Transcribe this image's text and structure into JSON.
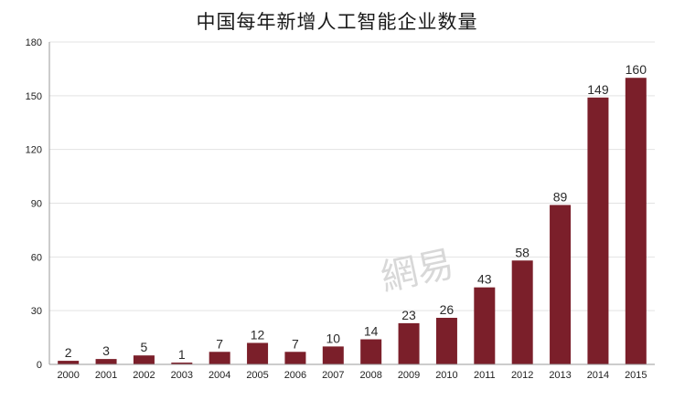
{
  "chart_data": {
    "type": "bar",
    "title": "中国每年新增人工智能企业数量",
    "xlabel": "",
    "ylabel": "",
    "categories": [
      "2000",
      "2001",
      "2002",
      "2003",
      "2004",
      "2005",
      "2006",
      "2007",
      "2008",
      "2009",
      "2010",
      "2011",
      "2012",
      "2013",
      "2014",
      "2015"
    ],
    "values": [
      2,
      3,
      5,
      1,
      7,
      12,
      7,
      10,
      14,
      23,
      26,
      43,
      58,
      89,
      149,
      160
    ],
    "ylim": [
      0,
      180
    ],
    "yticks": [
      0,
      30,
      60,
      90,
      120,
      150,
      180
    ],
    "grid": "horizontal",
    "bar_color": "#7b1f2a",
    "legend": "none",
    "watermark": "網易"
  }
}
